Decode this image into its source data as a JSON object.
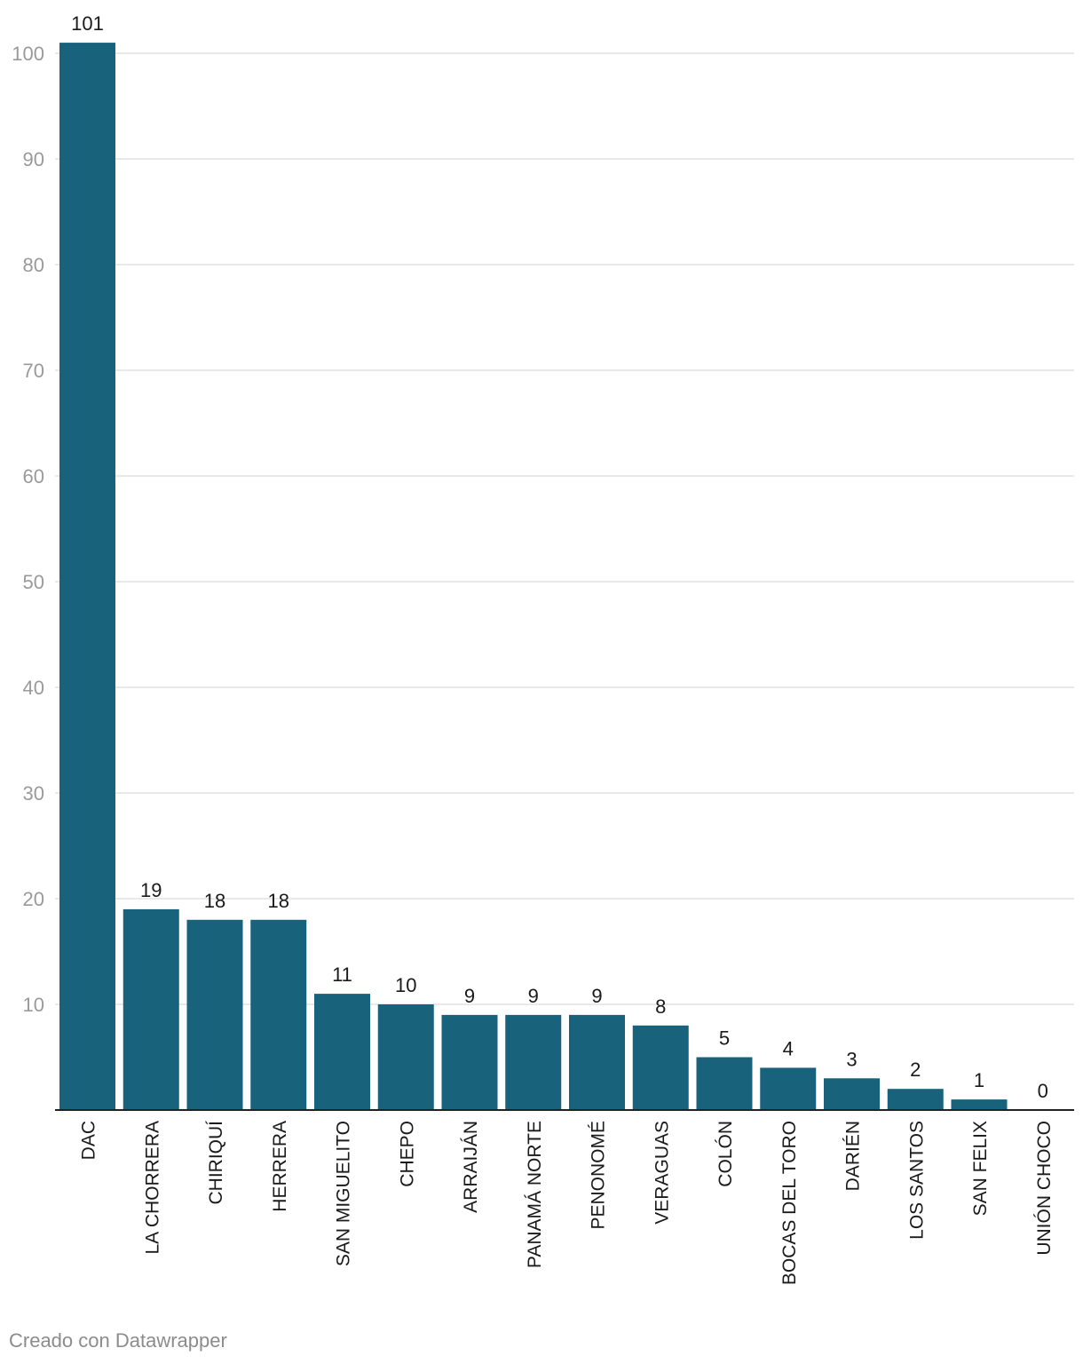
{
  "chart_data": {
    "type": "bar",
    "title": "",
    "xlabel": "",
    "ylabel": "",
    "ylim": [
      0,
      105
    ],
    "yticks": [
      10,
      20,
      30,
      40,
      50,
      60,
      70,
      80,
      90,
      100
    ],
    "grid": true,
    "categories": [
      "DAC",
      "LA CHORRERA",
      "CHIRIQUÍ",
      "HERRERA",
      "SAN MIGUELITO",
      "CHEPO",
      "ARRAIJÁN",
      "PANAMÁ NORTE",
      "PENONOMÉ",
      "VERAGUAS",
      "COLÓN",
      "BOCAS DEL TORO",
      "DARIÉN",
      "LOS SANTOS",
      "SAN FELIX",
      "UNIÓN CHOCO"
    ],
    "values": [
      101,
      19,
      18,
      18,
      11,
      10,
      9,
      9,
      9,
      8,
      5,
      4,
      3,
      2,
      1,
      0
    ],
    "bar_color": "#18627b"
  },
  "footer": {
    "credit": "Creado con Datawrapper"
  }
}
